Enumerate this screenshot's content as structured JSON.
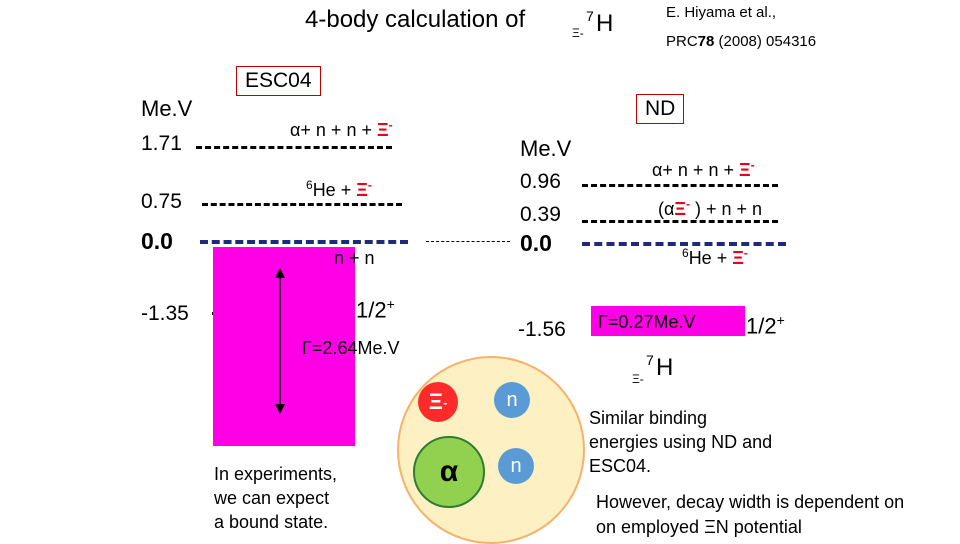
{
  "header": {
    "title": "4-body calculation of",
    "hyp_mass": "7",
    "hyp_sym": "H",
    "hyp_sub": "Ξ-",
    "ref_authors": "E. Hiyama et al.,",
    "ref_journal": "PRC",
    "ref_volume": "78",
    "ref_rest": "(2008) 054316"
  },
  "esc04": {
    "label": "ESC04",
    "unit": "Me.V",
    "e1": "1.71",
    "e2": "0.75",
    "e3": "0.0",
    "e4": "-1.35",
    "lab1": "α+ n + n + ",
    "lab1_xi": "Ξ",
    "lab1_sup": "-",
    "lab2_sup": "6",
    "lab2": "He + ",
    "lab2_xi": "Ξ",
    "lab2_xisup": "-",
    "lab3": "n + n",
    "spin": "1/2",
    "spin_sup": "+",
    "width": "Γ=2.64Me.V",
    "note": [
      "In experiments,",
      "we can expect",
      "a bound state."
    ]
  },
  "nd": {
    "label": "ND",
    "unit": "Me.V",
    "e1": "0.96",
    "e2": "0.39",
    "e3": "0.0",
    "e4": "-1.56",
    "lab1": "α+ n + n + ",
    "lab1_xi": "Ξ",
    "lab1_sup": "-",
    "lab2_pre": "(α",
    "lab2_xi": "Ξ",
    "lab2_sup": "-",
    "lab2_post": " ) + n + n",
    "lab3_sup": "6",
    "lab3": "He + ",
    "lab3_xi": "Ξ",
    "lab3_xisup": "-",
    "width": "Γ=0.27Me.V",
    "spin": "1/2",
    "spin_sup": "+",
    "hyp_mass": "7",
    "hyp_sym": "H",
    "hyp_sub": "Ξ-"
  },
  "nucleus": {
    "xi": "Ξ",
    "xi_sup": "-",
    "alpha": "α",
    "n1": "n",
    "n2": "n",
    "colors": {
      "xi": "#ff2a2a",
      "alpha": "#92d050",
      "n": "#5b9bd5",
      "cloud": "#fdf1c4"
    }
  },
  "conclusion": {
    "line1": [
      "Similar binding",
      "energies using ND and",
      "ESC04."
    ],
    "line2": [
      "However, decay width is dependent on",
      "on employed  ΞN potential"
    ]
  }
}
